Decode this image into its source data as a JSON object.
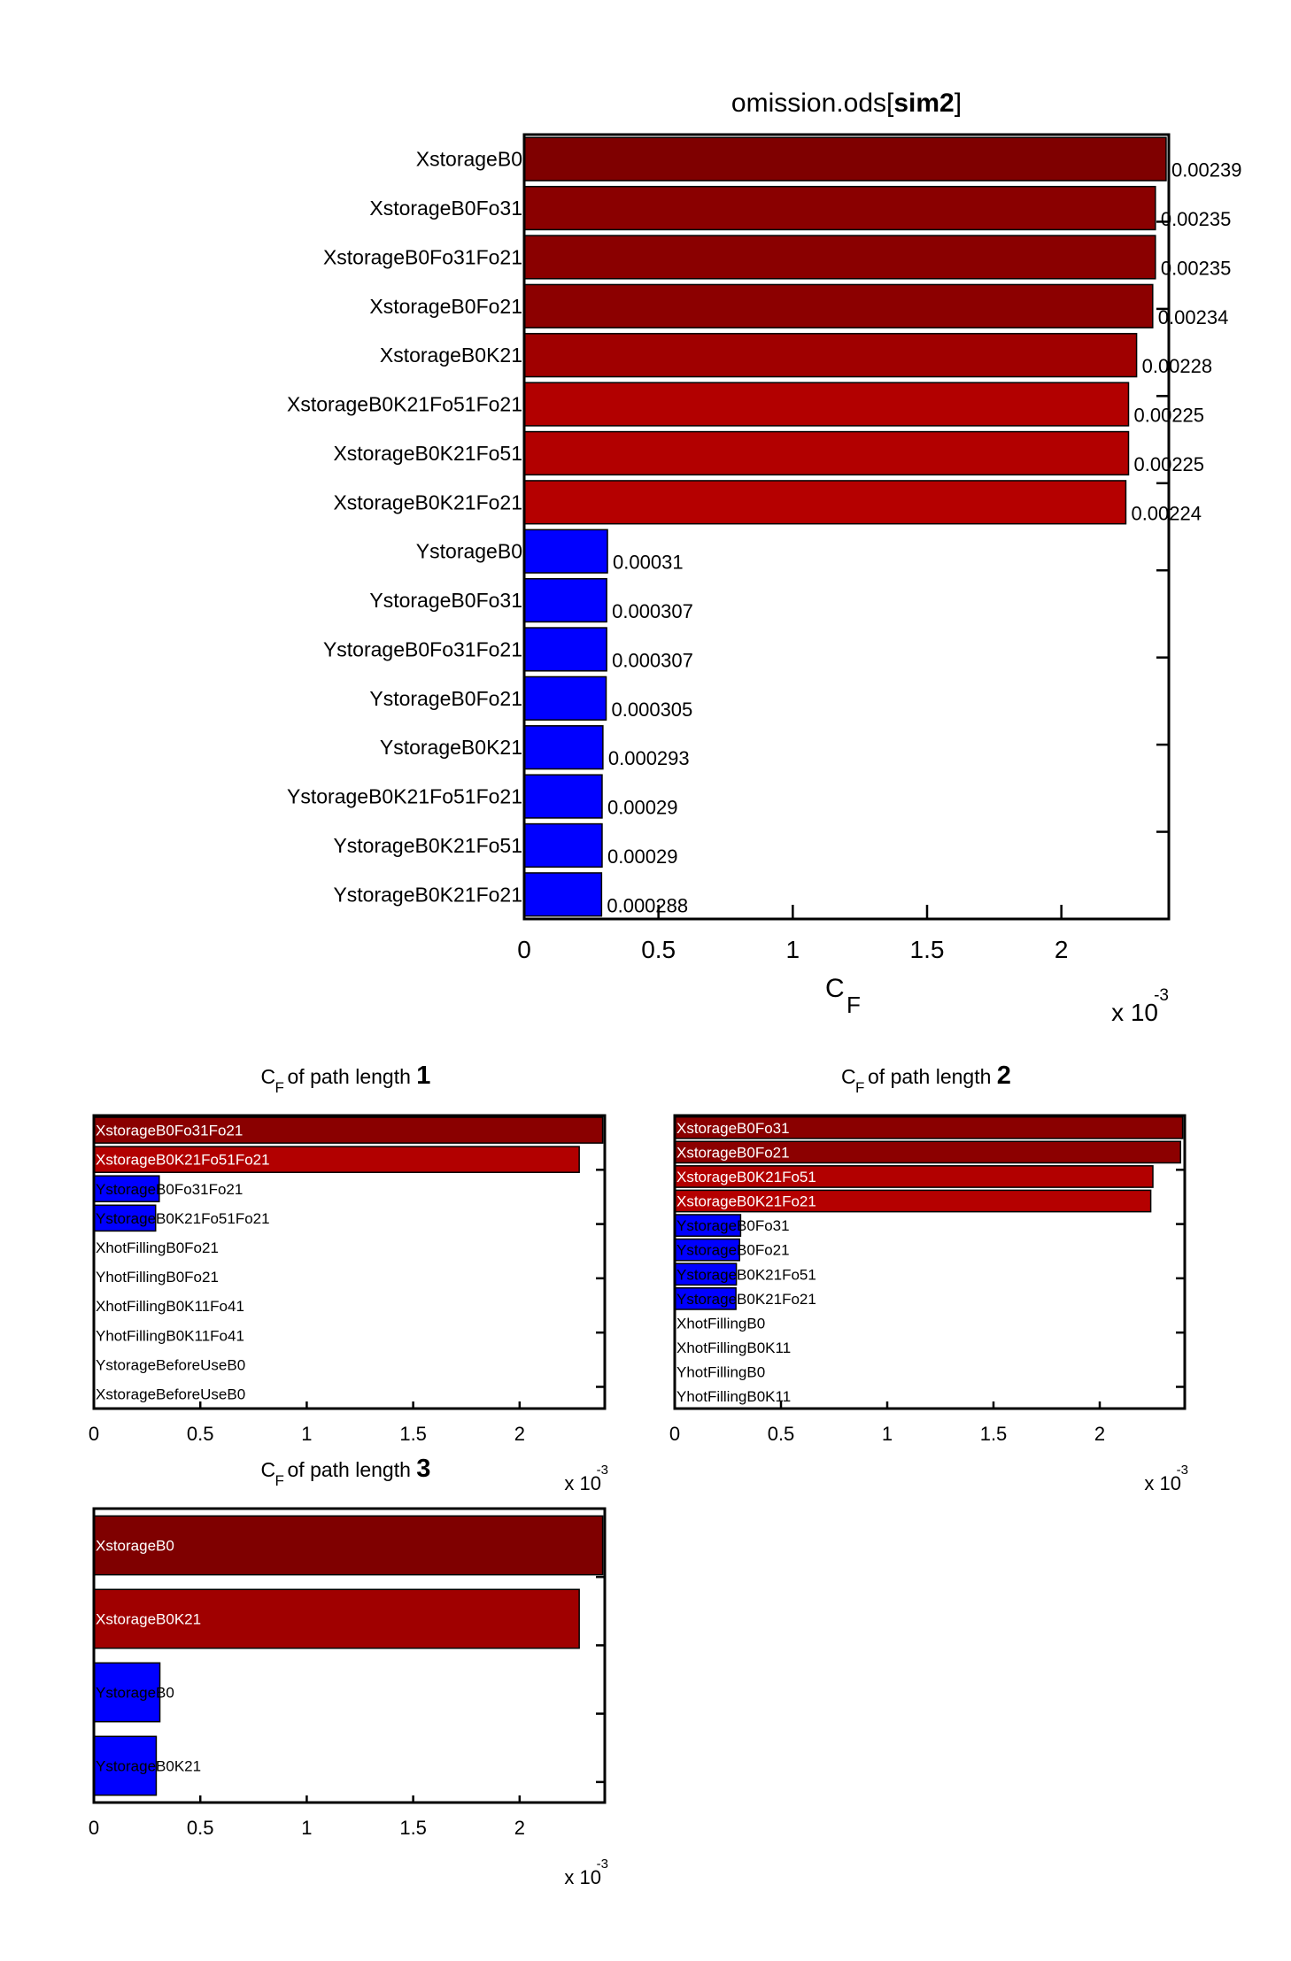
{
  "figure": {
    "main_title_prefix": "omission.ods[",
    "main_title_bold": "sim2",
    "main_title_suffix": "]",
    "subplot_title_prefix": "of path length ",
    "xlabel_main": "C",
    "xlabel_sub": "F",
    "exponent_base": "x 10",
    "exponent_power": "-3"
  },
  "colors": {
    "dark_red": "#800000",
    "red": "#8b0000",
    "mid_red": "#a00000",
    "bright_red": "#b30000",
    "blue": "#0000ff"
  },
  "chart_data": [
    {
      "type": "bar",
      "orientation": "horizontal",
      "title": "omission.ods[sim2]",
      "xlabel": "C_F",
      "xlim": [
        0,
        0.0024
      ],
      "x_ticks": [
        0,
        0.0005,
        0.001,
        0.0015,
        0.002
      ],
      "x_tick_labels": [
        "0",
        "0.5",
        "1",
        "1.5",
        "2"
      ],
      "x_multiplier": "x 10^-3",
      "categories": [
        "XstorageB0",
        "XstorageB0Fo31",
        "XstorageB0Fo31Fo21",
        "XstorageB0Fo21",
        "XstorageB0K21",
        "XstorageB0K21Fo51Fo21",
        "XstorageB0K21Fo51",
        "XstorageB0K21Fo21",
        "YstorageB0",
        "YstorageB0Fo31",
        "YstorageB0Fo31Fo21",
        "YstorageB0Fo21",
        "YstorageB0K21",
        "YstorageB0K21Fo51Fo21",
        "YstorageB0K21Fo51",
        "YstorageB0K21Fo21"
      ],
      "values": [
        0.00239,
        0.00235,
        0.00235,
        0.00234,
        0.00228,
        0.00225,
        0.00225,
        0.00224,
        0.00031,
        0.000307,
        0.000307,
        0.000305,
        0.000293,
        0.00029,
        0.00029,
        0.000288
      ],
      "value_labels": [
        "0.00239",
        "0.00235",
        "0.00235",
        "0.00234",
        "0.00228",
        "0.00225",
        "0.00225",
        "0.00224",
        "0.00031",
        "0.000307",
        "0.000307",
        "0.000305",
        "0.000293",
        "0.00029",
        "0.00029",
        "0.000288"
      ],
      "bar_colors": [
        "#7f0000",
        "#8a0000",
        "#8a0000",
        "#8c0000",
        "#a00000",
        "#b20000",
        "#b20000",
        "#b50000",
        "#0000ff",
        "#0000ff",
        "#0000ff",
        "#0000ff",
        "#0000ff",
        "#0000ff",
        "#0000ff",
        "#0000ff"
      ]
    },
    {
      "type": "bar",
      "orientation": "horizontal",
      "title": "C_F of path length 1",
      "title_number": "1",
      "xlim": [
        0,
        0.0024
      ],
      "x_ticks": [
        0,
        0.0005,
        0.001,
        0.0015,
        0.002
      ],
      "x_tick_labels": [
        "0",
        "0.5",
        "1",
        "1.5",
        "2"
      ],
      "x_multiplier": "x 10^-3",
      "categories": [
        "XstorageB0Fo31Fo21",
        "XstorageB0K21Fo51Fo21",
        "YstorageB0Fo31Fo21",
        "YstorageB0K21Fo51Fo21",
        "XhotFillingB0Fo21",
        "YhotFillingB0Fo21",
        "XhotFillingB0K11Fo41",
        "YhotFillingB0K11Fo41",
        "YstorageBeforeUseB0",
        "XstorageBeforeUseB0"
      ],
      "values": [
        0.00239,
        0.00228,
        0.000307,
        0.00029,
        0.0,
        0.0,
        0.0,
        0.0,
        0.0,
        0.0
      ],
      "bar_colors": [
        "#8a0000",
        "#b20000",
        "#0000ff",
        "#0000ff",
        "#0000ff",
        "#0000ff",
        "#0000ff",
        "#0000ff",
        "#0000ff",
        "#0000ff"
      ]
    },
    {
      "type": "bar",
      "orientation": "horizontal",
      "title": "C_F of path length 2",
      "title_number": "2",
      "xlim": [
        0,
        0.0024
      ],
      "x_ticks": [
        0,
        0.0005,
        0.001,
        0.0015,
        0.002
      ],
      "x_tick_labels": [
        "0",
        "0.5",
        "1",
        "1.5",
        "2"
      ],
      "x_multiplier": "x 10^-3",
      "categories": [
        "XstorageB0Fo31",
        "XstorageB0Fo21",
        "XstorageB0K21Fo51",
        "XstorageB0K21Fo21",
        "YstorageB0Fo31",
        "YstorageB0Fo21",
        "YstorageB0K21Fo51",
        "YstorageB0K21Fo21",
        "XhotFillingB0",
        "XhotFillingB0K11",
        "YhotFillingB0",
        "YhotFillingB0K11"
      ],
      "values": [
        0.00239,
        0.00238,
        0.00225,
        0.00224,
        0.00031,
        0.000305,
        0.00029,
        0.000288,
        0.0,
        0.0,
        0.0,
        0.0
      ],
      "bar_colors": [
        "#8a0000",
        "#8c0000",
        "#b20000",
        "#b50000",
        "#0000ff",
        "#0000ff",
        "#0000ff",
        "#0000ff",
        "#0000ff",
        "#0000ff",
        "#0000ff",
        "#0000ff"
      ]
    },
    {
      "type": "bar",
      "orientation": "horizontal",
      "title": "C_F of path length 3",
      "title_number": "3",
      "xlim": [
        0,
        0.0024
      ],
      "x_ticks": [
        0,
        0.0005,
        0.001,
        0.0015,
        0.002
      ],
      "x_tick_labels": [
        "0",
        "0.5",
        "1",
        "1.5",
        "2"
      ],
      "x_multiplier": "x 10^-3",
      "categories": [
        "XstorageB0",
        "XstorageB0K21",
        "YstorageB0",
        "YstorageB0K21"
      ],
      "values": [
        0.00239,
        0.00228,
        0.00031,
        0.000293
      ],
      "bar_colors": [
        "#7f0000",
        "#a00000",
        "#0000ff",
        "#0000ff"
      ]
    }
  ]
}
